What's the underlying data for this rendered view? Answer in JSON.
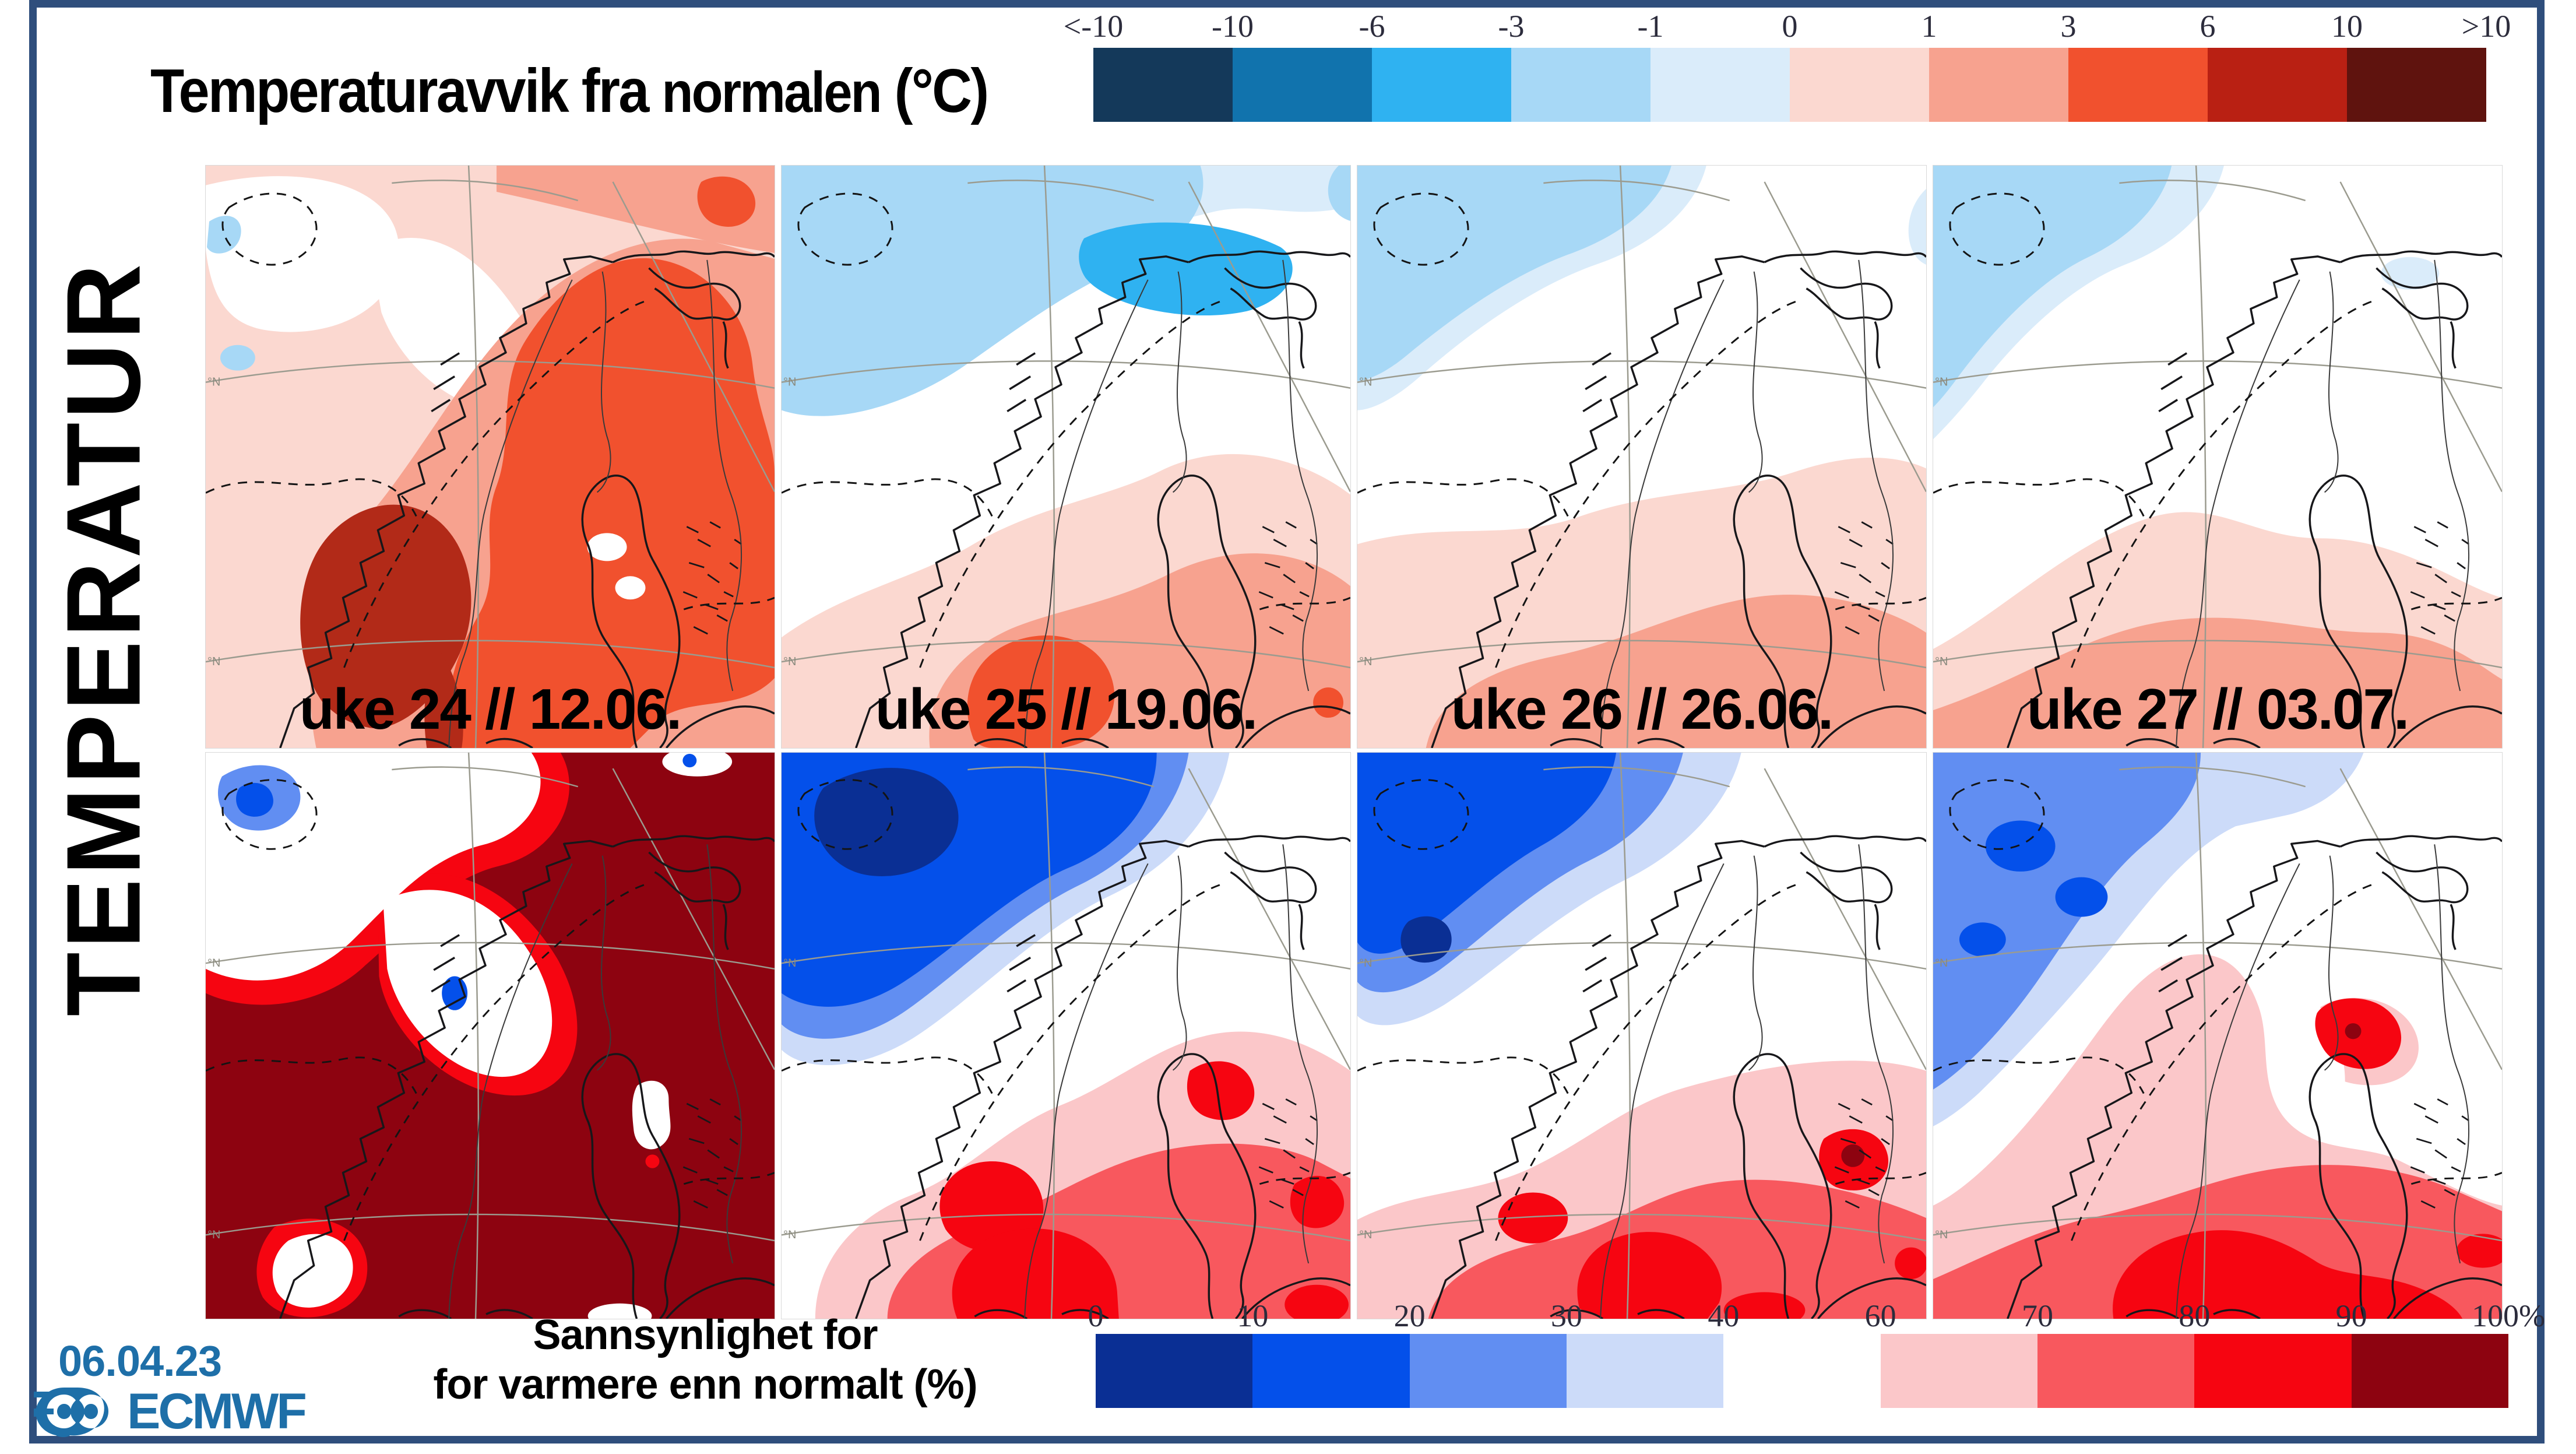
{
  "slide": {
    "border_color": "#2f4e7c",
    "background": "#ffffff"
  },
  "header": {
    "title_main": "Temperaturavvik fra",
    "title_secondary": "normalen",
    "title_unit": "(°C)"
  },
  "sidebar_label": "TEMPERATUR",
  "anomaly_colorbar": {
    "tick_labels": [
      "<-10",
      "-10",
      "-6",
      "-3",
      "-1",
      "0",
      "1",
      "3",
      "6",
      "10",
      ">10"
    ],
    "colors": [
      "#14395a",
      "#1173ad",
      "#2fb2f1",
      "#a7d8f6",
      "#daecfa",
      "#fbd8d0",
      "#f7a28f",
      "#f1512e",
      "#b92013",
      "#5f130e"
    ]
  },
  "probability_colorbar": {
    "tick_labels": [
      "0",
      "10",
      "20",
      "30",
      "40",
      "60",
      "70",
      "80",
      "90",
      "100%"
    ],
    "colors": [
      "#0a2f94",
      "#0450ea",
      "#618ef2",
      "#ccdbf9",
      "#ffffff",
      "#fbc7c9",
      "#f8585e",
      "#f60511",
      "#8d0310"
    ]
  },
  "maps": {
    "lat_label": "°N",
    "week_labels": [
      "uke 24 // 12.06.",
      "uke 25 // 19.06.",
      "uke 26 // 26.06.",
      "uke 27 // 03.07."
    ]
  },
  "footer": {
    "date": "06.04.23",
    "logo_text": "ECMWF",
    "logo_color": "#1e6fa8",
    "caption_line1": "Sannsynlighet for",
    "caption_line2": "for varmere enn normalt (%)"
  }
}
